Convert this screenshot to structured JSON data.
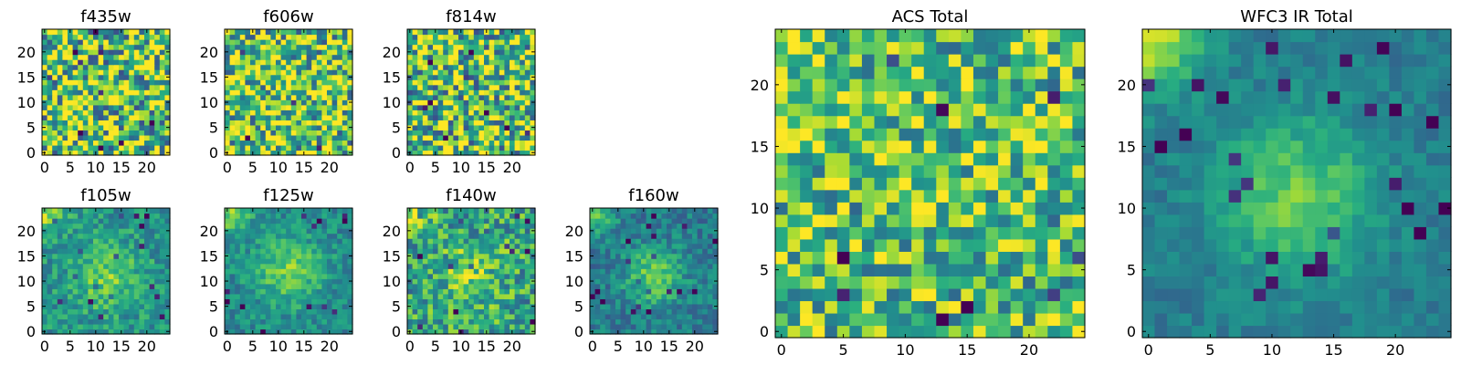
{
  "chart_data": [
    {
      "type": "heatmap",
      "title": "f435w",
      "x_ticks": [
        "0",
        "5",
        "10",
        "15",
        "20"
      ],
      "y_ticks": [
        "0",
        "5",
        "10",
        "15",
        "20"
      ],
      "xlim": [
        0,
        24
      ],
      "ylim": [
        0,
        24
      ],
      "grid_size": 25,
      "colormap": "viridis",
      "description": "pixelated noisy image, mostly green-yellow"
    },
    {
      "type": "heatmap",
      "title": "f606w",
      "x_ticks": [
        "0",
        "5",
        "10",
        "15",
        "20"
      ],
      "y_ticks": [
        "0",
        "5",
        "10",
        "15",
        "20"
      ],
      "xlim": [
        0,
        24
      ],
      "ylim": [
        0,
        24
      ],
      "grid_size": 25,
      "colormap": "viridis"
    },
    {
      "type": "heatmap",
      "title": "f814w",
      "x_ticks": [
        "0",
        "5",
        "10",
        "15",
        "20"
      ],
      "y_ticks": [
        "0",
        "5",
        "10",
        "15",
        "20"
      ],
      "xlim": [
        0,
        24
      ],
      "ylim": [
        0,
        24
      ],
      "grid_size": 25,
      "colormap": "viridis"
    },
    {
      "type": "heatmap",
      "title": "f105w",
      "x_ticks": [
        "0",
        "5",
        "10",
        "15",
        "20"
      ],
      "y_ticks": [
        "0",
        "5",
        "10",
        "15",
        "20"
      ],
      "xlim": [
        0,
        24
      ],
      "ylim": [
        0,
        24
      ],
      "grid_size": 25,
      "colormap": "viridis"
    },
    {
      "type": "heatmap",
      "title": "f125w",
      "x_ticks": [
        "0",
        "5",
        "10",
        "15",
        "20"
      ],
      "y_ticks": [
        "0",
        "5",
        "10",
        "15",
        "20"
      ],
      "xlim": [
        0,
        24
      ],
      "ylim": [
        0,
        24
      ],
      "grid_size": 25,
      "colormap": "viridis"
    },
    {
      "type": "heatmap",
      "title": "f140w",
      "x_ticks": [
        "0",
        "5",
        "10",
        "15",
        "20"
      ],
      "y_ticks": [
        "0",
        "5",
        "10",
        "15",
        "20"
      ],
      "xlim": [
        0,
        24
      ],
      "ylim": [
        0,
        24
      ],
      "grid_size": 25,
      "colormap": "viridis"
    },
    {
      "type": "heatmap",
      "title": "f160w",
      "x_ticks": [
        "0",
        "5",
        "10",
        "15",
        "20"
      ],
      "y_ticks": [
        "0",
        "5",
        "10",
        "15",
        "20"
      ],
      "xlim": [
        0,
        24
      ],
      "ylim": [
        0,
        24
      ],
      "grid_size": 25,
      "colormap": "viridis"
    },
    {
      "type": "heatmap",
      "title": "ACS Total",
      "x_ticks": [
        "0",
        "5",
        "10",
        "15",
        "20"
      ],
      "y_ticks": [
        "0",
        "5",
        "10",
        "15",
        "20"
      ],
      "xlim": [
        0,
        24
      ],
      "ylim": [
        0,
        24
      ],
      "grid_size": 25,
      "colormap": "viridis"
    },
    {
      "type": "heatmap",
      "title": "WFC3 IR Total",
      "x_ticks": [
        "0",
        "5",
        "10",
        "15",
        "20"
      ],
      "y_ticks": [
        "0",
        "5",
        "10",
        "15",
        "20"
      ],
      "xlim": [
        0,
        24
      ],
      "ylim": [
        0,
        24
      ],
      "grid_size": 25,
      "colormap": "viridis"
    }
  ]
}
